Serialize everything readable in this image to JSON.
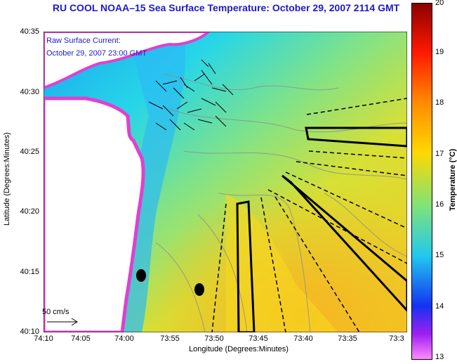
{
  "title": "RU COOL  NOAA–15  Sea Surface Temperature:  October 29, 2007 2114 GMT",
  "annotation": {
    "line1": "Raw Surface Current:",
    "line2": "October 29, 2007 23:00 GMT"
  },
  "axes": {
    "ylabel": "Latitude (Degrees:Minutes)",
    "xlabel": "Longitude (Degrees:Minutes)",
    "yticks": [
      "40:35",
      "40:30",
      "40:25",
      "40:20",
      "40:15",
      "40:10"
    ],
    "xticks": [
      "74:10",
      "74:05",
      "74:00",
      "73:55",
      "73:50",
      "73:45",
      "73:40",
      "73:35",
      "73:3"
    ]
  },
  "colorbar": {
    "title": "Temperature (°C)",
    "ticks": [
      "20",
      "19",
      "18",
      "17",
      "16",
      "15",
      "14",
      "13"
    ],
    "range": [
      13,
      20
    ]
  },
  "scale_label": "50 cm/s",
  "colors": {
    "title": "#1a1acc",
    "land": "#ffffff",
    "warm": "#f2d21e",
    "cool": "#1fd5ee"
  }
}
